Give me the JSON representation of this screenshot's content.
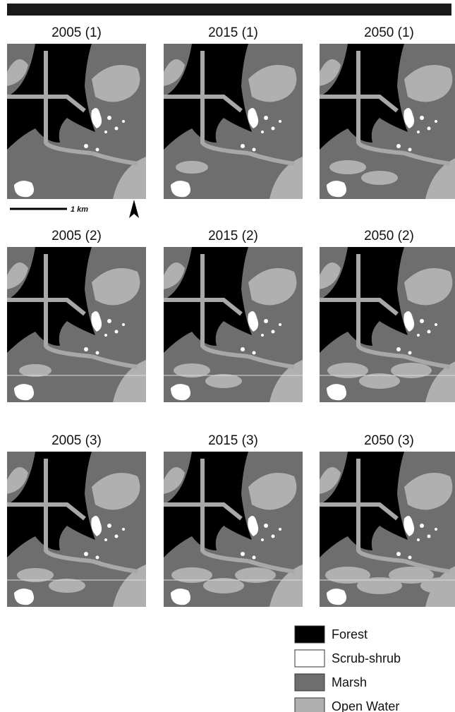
{
  "panels": [
    {
      "title": "2005 (1)"
    },
    {
      "title": "2015 (1)"
    },
    {
      "title": "2050 (1)"
    },
    {
      "title": "2005 (2)"
    },
    {
      "title": "2015 (2)"
    },
    {
      "title": "2050 (2)"
    },
    {
      "title": "2005 (3)"
    },
    {
      "title": "2015 (3)"
    },
    {
      "title": "2050 (3)"
    }
  ],
  "scale_bar": {
    "label": "1 km"
  },
  "legend": [
    {
      "label": "Forest"
    },
    {
      "label": "Scrub-shrub"
    },
    {
      "label": "Marsh"
    },
    {
      "label": "Open Water"
    }
  ]
}
